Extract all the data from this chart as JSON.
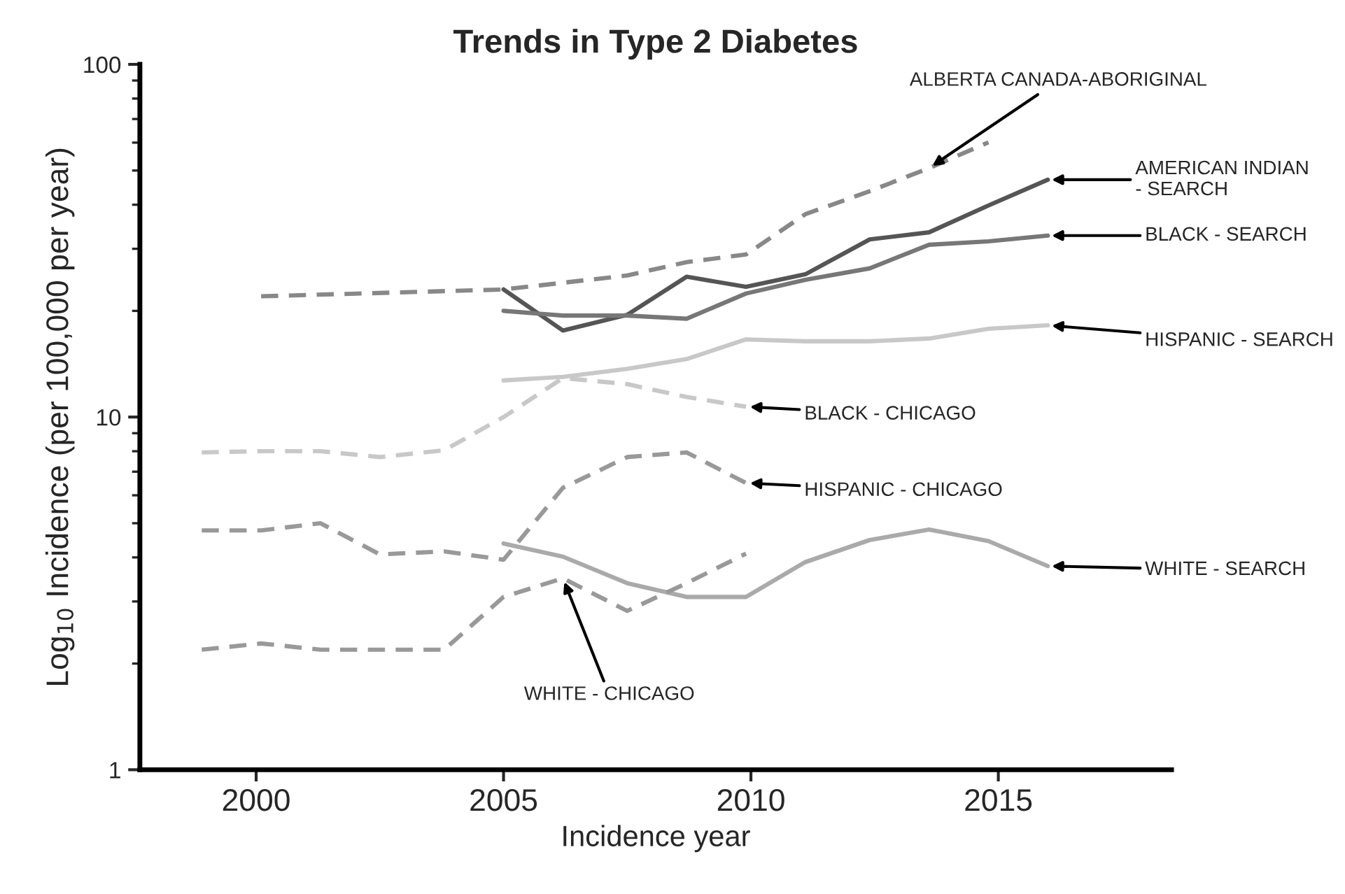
{
  "chart_data": {
    "type": "line",
    "title": "Trends in Type 2 Diabetes",
    "xlabel": "Incidence year",
    "ylabel": "Log$_{10}$ Incidence (per 100,000 per year)",
    "log": "y",
    "xlim": [
      1997.65,
      2018.5
    ],
    "xticks": [
      2000,
      2005,
      2010,
      2015
    ],
    "ylim": [
      1,
      100
    ],
    "yticks": [
      1,
      10,
      100
    ],
    "grid": false,
    "marker": "none",
    "series": [
      {
        "name": "ALBERTA CANADA-ABORIGINAL",
        "color": "#888888",
        "line_style": "dashed",
        "x": [
          2000.1,
          2005.0,
          2007.5,
          2008.7,
          2009.9,
          2011.1,
          2012.4,
          2013.6,
          2014.8
        ],
        "values": [
          22.0,
          23.0,
          25.2,
          27.5,
          28.9,
          37.6,
          43.7,
          50.8,
          60.1
        ]
      },
      {
        "name": "AMERICAN INDIAN\n- SEARCH",
        "color": "#555555",
        "line_style": "solid",
        "x": [
          2005.0,
          2006.2,
          2007.5,
          2008.7,
          2009.9,
          2011.1,
          2012.4,
          2013.6,
          2014.8,
          2016.0
        ],
        "values": [
          23.0,
          17.6,
          19.5,
          25.0,
          23.4,
          25.4,
          31.9,
          33.4,
          39.8,
          47.1
        ]
      },
      {
        "name": "BLACK - SEARCH",
        "color": "#777777",
        "line_style": "solid",
        "x": [
          2005.0,
          2006.2,
          2007.5,
          2008.7,
          2009.9,
          2011.1,
          2012.4,
          2013.6,
          2014.8,
          2016.0
        ],
        "values": [
          20.0,
          19.4,
          19.4,
          19.0,
          22.4,
          24.5,
          26.4,
          30.8,
          31.5,
          32.7
        ]
      },
      {
        "name": "HISPANIC - SEARCH",
        "color": "#c8c8c8",
        "line_style": "solid",
        "x": [
          2005.0,
          2006.2,
          2007.5,
          2008.7,
          2009.9,
          2011.1,
          2012.4,
          2013.6,
          2014.8,
          2016.0
        ],
        "values": [
          12.7,
          13.0,
          13.7,
          14.6,
          16.6,
          16.4,
          16.4,
          16.7,
          17.8,
          18.2
        ]
      },
      {
        "name": "BLACK - CHICAGO",
        "color": "#c8c8c8",
        "line_style": "dashed",
        "x": [
          1998.9,
          2000.1,
          2001.3,
          2002.5,
          2003.8,
          2005.0,
          2006.2,
          2007.5,
          2008.7,
          2009.9
        ],
        "values": [
          7.94,
          8.0,
          8.0,
          7.7,
          8.05,
          10.0,
          12.9,
          12.4,
          11.4,
          10.7
        ]
      },
      {
        "name": "HISPANIC - CHICAGO",
        "color": "#999999",
        "line_style": "dashed",
        "x": [
          1998.9,
          2000.1,
          2001.3,
          2002.5,
          2003.8,
          2005.0,
          2006.2,
          2007.5,
          2008.7,
          2009.9
        ],
        "values": [
          4.77,
          4.77,
          5.0,
          4.08,
          4.16,
          3.94,
          6.3,
          7.7,
          7.94,
          6.5
        ]
      },
      {
        "name": "WHITE - SEARCH",
        "color": "#aaaaaa",
        "line_style": "solid",
        "x": [
          2005.0,
          2006.2,
          2007.5,
          2008.7,
          2009.9,
          2011.1,
          2012.4,
          2013.6,
          2014.8,
          2016.0
        ],
        "values": [
          4.38,
          4.02,
          3.38,
          3.09,
          3.09,
          3.88,
          4.48,
          4.8,
          4.45,
          3.78
        ]
      },
      {
        "name": "WHITE - CHICAGO",
        "color": "#999999",
        "line_style": "dashed",
        "x": [
          1998.9,
          2000.1,
          2001.3,
          2002.5,
          2003.8,
          2005.0,
          2006.2,
          2007.5,
          2008.7,
          2009.9
        ],
        "values": [
          2.19,
          2.28,
          2.19,
          2.19,
          2.19,
          3.09,
          3.49,
          2.82,
          3.38,
          4.1
        ]
      }
    ]
  }
}
